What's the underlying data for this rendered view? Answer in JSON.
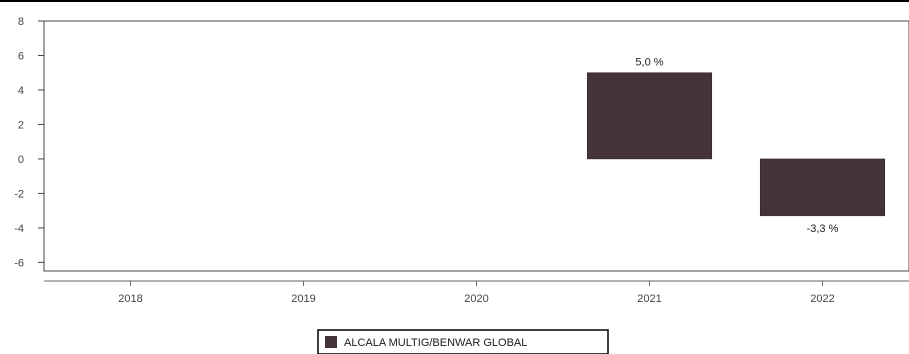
{
  "chart_data": {
    "type": "bar",
    "categories": [
      "2018",
      "2019",
      "2020",
      "2021",
      "2022"
    ],
    "series": [
      {
        "name": "ALCALA MULTIG/BENWAR GLOBAL",
        "values": [
          null,
          null,
          null,
          5.0,
          -3.3
        ],
        "labels": [
          "",
          "",
          "",
          "5,0 %",
          "-3,3 %"
        ],
        "color": "#45333a"
      }
    ],
    "yticks": [
      "8",
      "6",
      "4",
      "2",
      "0",
      "-2",
      "-4",
      "-6"
    ],
    "ylim": [
      -6.5,
      8
    ],
    "grid": false,
    "legend_position": "bottom-center",
    "title": "",
    "xlabel": "",
    "ylabel": ""
  }
}
